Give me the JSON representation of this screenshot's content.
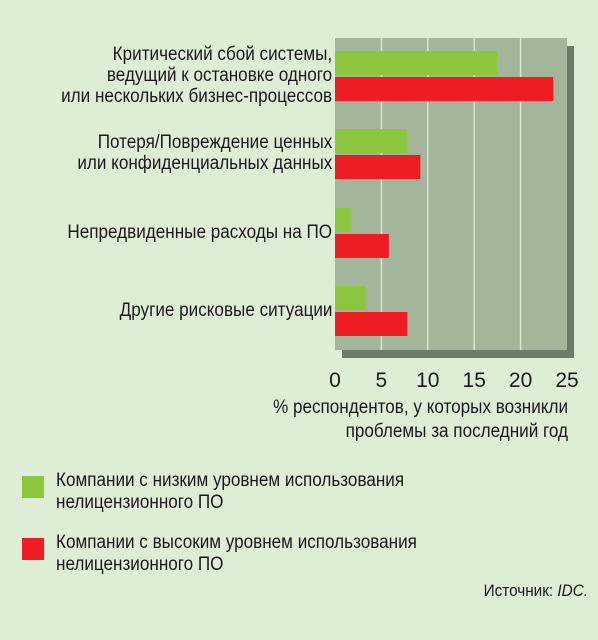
{
  "chart_data": {
    "type": "bar",
    "orientation": "horizontal",
    "categories": [
      [
        "Критический сбой системы,",
        "ведущий к остановке одного",
        "или нескольких бизнес-процессов"
      ],
      [
        "Потеря/Повреждение ценных",
        "или конфиденциальных данных"
      ],
      [
        "Непредвиденные расходы на ПО"
      ],
      [
        "Другие рисковые ситуации"
      ]
    ],
    "series": [
      {
        "name": "Компании с низким уровнем использования нелицензионного ПО",
        "color": "#8cc63f",
        "values": [
          17.5,
          7.8,
          1.8,
          3.3
        ]
      },
      {
        "name": "Компании с высоким уровнем использования нелицензионного ПО",
        "color": "#ee1c25",
        "values": [
          23.5,
          9.2,
          5.8,
          7.8
        ]
      }
    ],
    "xlim": [
      0,
      25
    ],
    "xticks": [
      "0",
      "5",
      "10",
      "15",
      "20",
      "25"
    ],
    "xlabel": "% респондентов, у которых возникли\nпроблемы за последний год",
    "grid": true,
    "legend_position": "bottom"
  },
  "legend": [
    {
      "text": "Компании с низким уровнем использования\nнелицензионного ПО",
      "color": "#8cc63f"
    },
    {
      "text": "Компании с высоким уровнем использования\nнелицензионного ПО",
      "color": "#ee1c25"
    }
  ],
  "source": {
    "label": "Источник:",
    "name": "IDC."
  },
  "colors": {
    "plot_background": "#a3b69c",
    "page_background": "#ddedd6",
    "gridline": "#d8e3d2"
  }
}
